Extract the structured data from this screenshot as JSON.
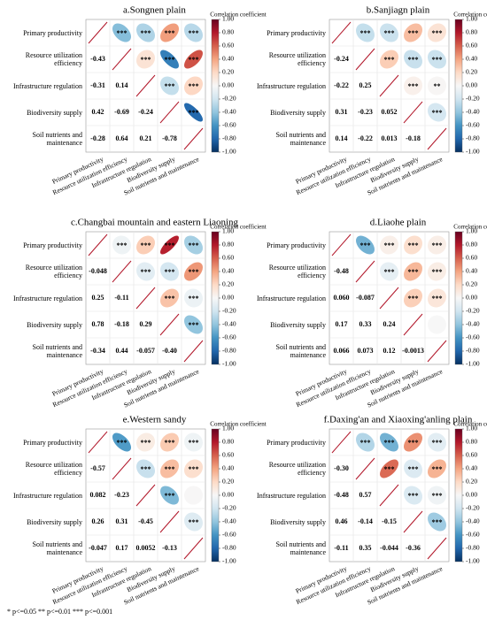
{
  "variables": [
    "Primary productivity",
    "Resource utilization efficiency",
    "Infrastructure regulation",
    "Biodiversity supply",
    "Soil nutrients and maintenance"
  ],
  "colorbar": {
    "title": "Correlation coefficient",
    "clim": [
      -1,
      1
    ],
    "ticks": [
      {
        "value": 1,
        "label": "1.00"
      },
      {
        "value": 0.8,
        "label": "0.80"
      },
      {
        "value": 0.6,
        "label": "0.60"
      },
      {
        "value": 0.4,
        "label": "0.40"
      },
      {
        "value": 0.2,
        "label": "0.20"
      },
      {
        "value": 0,
        "label": "0.00"
      },
      {
        "value": -0.2,
        "label": "-0.20"
      },
      {
        "value": -0.4,
        "label": "-0.40"
      },
      {
        "value": -0.6,
        "label": "-0.60"
      },
      {
        "value": -0.8,
        "label": "-0.80"
      },
      {
        "value": -1,
        "label": "-1.00"
      }
    ]
  },
  "footnote": "* p<=0.05  ** p<=0.01  *** p<=0.001",
  "chart_data": [
    {
      "type": "correlogram",
      "title": "a.Songnen plain",
      "values": [
        -0.43,
        -0.31,
        0.14,
        0.42,
        -0.69,
        -0.24,
        -0.28,
        0.64,
        0.21,
        -0.78
      ],
      "value_labels": [
        "-0.43",
        "-0.31",
        "0.14",
        "0.42",
        "-0.69",
        "-0.24",
        "-0.28",
        "0.64",
        "0.21",
        "-0.78"
      ],
      "significance": [
        "***",
        "***",
        "***",
        "***",
        "***",
        "***",
        "***",
        "***",
        "***",
        "***"
      ]
    },
    {
      "type": "correlogram",
      "title": "b.Sanjiagn plain",
      "values": [
        -0.24,
        -0.22,
        0.25,
        0.31,
        -0.23,
        0.052,
        0.14,
        -0.22,
        0.013,
        -0.18
      ],
      "value_labels": [
        "-0.24",
        "-0.22",
        "0.25",
        "0.31",
        "-0.23",
        "0.052",
        "0.14",
        "-0.22",
        "0.013",
        "-0.18"
      ],
      "significance": [
        "***",
        "***",
        "***",
        "***",
        "***",
        "***",
        "***",
        "***",
        "**",
        "***"
      ]
    },
    {
      "type": "correlogram",
      "title": "c.Changbai mountain and eastern Liaoning",
      "values": [
        -0.048,
        0.25,
        -0.11,
        0.78,
        -0.18,
        0.29,
        -0.34,
        0.44,
        -0.057,
        -0.4
      ],
      "value_labels": [
        "-0.048",
        "0.25",
        "-0.11",
        "0.78",
        "-0.18",
        "0.29",
        "-0.34",
        "0.44",
        "-0.057",
        "-0.40"
      ],
      "significance": [
        "***",
        "***",
        "***",
        "***",
        "***",
        "***",
        "***",
        "***",
        "***",
        "***"
      ]
    },
    {
      "type": "correlogram",
      "title": "d.Liaohe plain",
      "values": [
        -0.48,
        0.06,
        -0.087,
        0.17,
        0.33,
        0.24,
        0.066,
        0.073,
        0.12,
        -0.0013
      ],
      "value_labels": [
        "-0.48",
        "0.060",
        "-0.087",
        "0.17",
        "0.33",
        "0.24",
        "0.066",
        "0.073",
        "0.12",
        "-0.0013"
      ],
      "significance": [
        "***",
        "***",
        "***",
        "***",
        "***",
        "***",
        "***",
        "***",
        "***",
        null
      ]
    },
    {
      "type": "correlogram",
      "title": "e.Western sandy",
      "values": [
        -0.57,
        0.082,
        -0.23,
        0.26,
        0.31,
        -0.45,
        -0.047,
        0.17,
        0.0052,
        -0.13
      ],
      "value_labels": [
        "-0.57",
        "0.082",
        "-0.23",
        "0.26",
        "0.31",
        "-0.45",
        "-0.047",
        "0.17",
        "0.0052",
        "-0.13"
      ],
      "significance": [
        "***",
        "***",
        "***",
        "***",
        "***",
        "***",
        "***",
        "***",
        null,
        "***"
      ]
    },
    {
      "type": "correlogram",
      "title": "f.Daxing'an and Xiaoxing'anling plain",
      "values": [
        -0.3,
        -0.48,
        0.57,
        0.46,
        -0.14,
        -0.15,
        -0.11,
        0.35,
        -0.044,
        -0.36
      ],
      "value_labels": [
        "-0.30",
        "-0.48",
        "0.57",
        "0.46",
        "-0.14",
        "-0.15",
        "-0.11",
        "0.35",
        "-0.044",
        "-0.36"
      ],
      "significance": [
        "***",
        "***",
        "***",
        "***",
        "***",
        "***",
        "***",
        "***",
        "***",
        "***"
      ]
    }
  ]
}
